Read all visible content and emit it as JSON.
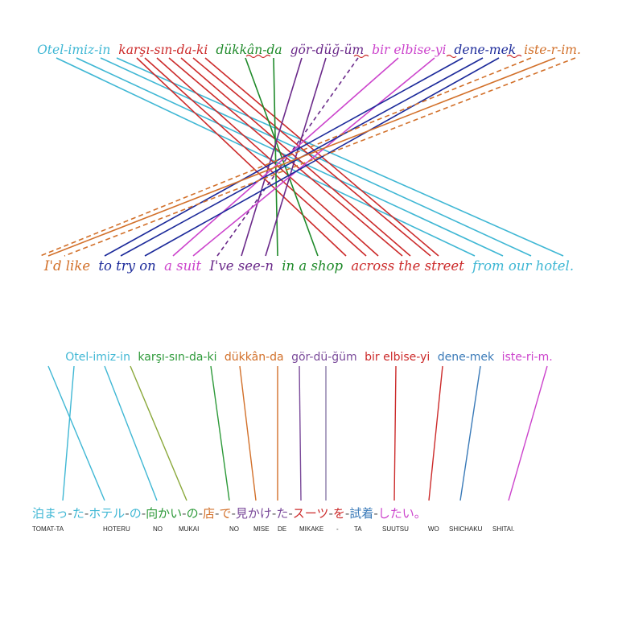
{
  "top": {
    "turkish": [
      {
        "text": "Otel-imiz-in",
        "color": "#3fb7d4"
      },
      {
        "text": "karşı-sın-da-ki",
        "color": "#cc2b2b"
      },
      {
        "text": "dükkân-da",
        "color": "#1f8a2a"
      },
      {
        "text": "gör-düğ-üm",
        "color": "#6b2a8a"
      },
      {
        "text": "bir elbise-yi",
        "color": "#cc44cc"
      },
      {
        "text": "dene-mek",
        "color": "#1c2a9a"
      },
      {
        "text": "iste-r-im.",
        "color": "#d2702a"
      }
    ],
    "english": [
      {
        "text": "I'd like",
        "color": "#d2702a"
      },
      {
        "text": "to try on",
        "color": "#1c2a9a"
      },
      {
        "text": "a suit",
        "color": "#cc44cc"
      },
      {
        "text": "I've see-n",
        "color": "#6b2a8a"
      },
      {
        "text": "in a shop",
        "color": "#1f8a2a"
      },
      {
        "text": "across the street",
        "color": "#cc2b2b"
      },
      {
        "text": "from our hotel.",
        "color": "#3fb7d4"
      }
    ]
  },
  "bottom": {
    "turkish": [
      {
        "text": "Otel-imiz-in",
        "color": "#3fb7d4"
      },
      {
        "text": "karşı-sın-da-ki",
        "color": "#2e9a3a"
      },
      {
        "text": "dükkân-da",
        "color": "#d2702a"
      },
      {
        "text": "gör-dü-ğüm",
        "color": "#7a4a9a"
      },
      {
        "text": "bir elbise-yi",
        "color": "#cc2b2b"
      },
      {
        "text": "dene-mek",
        "color": "#3a7ab8"
      },
      {
        "text": "iste-ri-m.",
        "color": "#cc44cc"
      }
    ],
    "japanese": [
      {
        "text": "泊まっ",
        "color": "#3fb7d4"
      },
      {
        "text": "-",
        "color": "#555555"
      },
      {
        "text": "た",
        "color": "#3fb7d4"
      },
      {
        "text": "-",
        "color": "#555555"
      },
      {
        "text": "ホテル",
        "color": "#3fb7d4"
      },
      {
        "text": "-",
        "color": "#555555"
      },
      {
        "text": "の",
        "color": "#3fb7d4"
      },
      {
        "text": "-",
        "color": "#555555"
      },
      {
        "text": "向かい",
        "color": "#2e9a3a"
      },
      {
        "text": "-",
        "color": "#555555"
      },
      {
        "text": "の",
        "color": "#2e9a3a"
      },
      {
        "text": "-",
        "color": "#555555"
      },
      {
        "text": "店",
        "color": "#d2702a"
      },
      {
        "text": "-",
        "color": "#555555"
      },
      {
        "text": "で",
        "color": "#d2702a"
      },
      {
        "text": "-",
        "color": "#555555"
      },
      {
        "text": "見かけ",
        "color": "#7a4a9a"
      },
      {
        "text": "-",
        "color": "#555555"
      },
      {
        "text": "た",
        "color": "#7a4a9a"
      },
      {
        "text": "-",
        "color": "#555555"
      },
      {
        "text": "スーツ",
        "color": "#cc2b2b"
      },
      {
        "text": "-",
        "color": "#555555"
      },
      {
        "text": "を",
        "color": "#cc2b2b"
      },
      {
        "text": "-",
        "color": "#555555"
      },
      {
        "text": "試着",
        "color": "#3a7ab8"
      },
      {
        "text": "-",
        "color": "#555555"
      },
      {
        "text": "したい。",
        "color": "#cc44cc"
      }
    ],
    "romanization": [
      "TOMAT-TA",
      "HOTERU",
      "NO",
      "MUKAI",
      "NO",
      "MISE",
      "DE",
      "MIKAKE",
      "-",
      "TA",
      "SUUTSU",
      "WO",
      "SHICHAKU",
      "SHITAI."
    ]
  }
}
